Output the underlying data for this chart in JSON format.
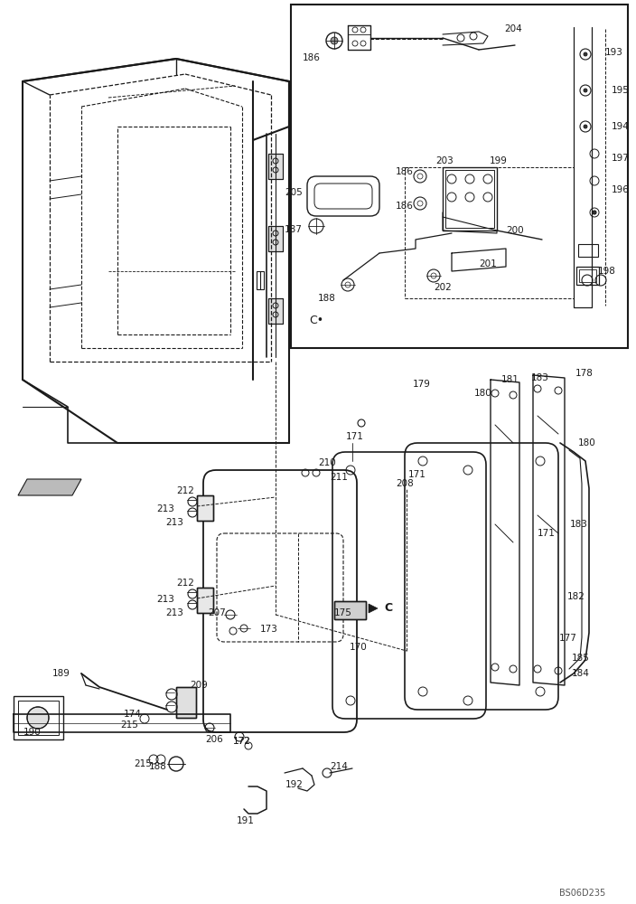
{
  "bg_color": "#ffffff",
  "line_color": "#1a1a1a",
  "image_code": "BS06D235",
  "fig_width": 7.04,
  "fig_height": 10.0,
  "dpi": 100
}
